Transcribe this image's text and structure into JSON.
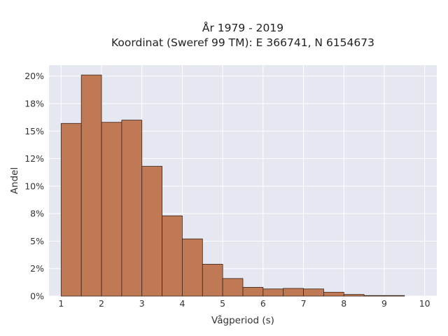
{
  "chart_data": {
    "type": "bar",
    "title_line1": "År 1979 - 2019",
    "title_line2": "Koordinat (Sweref 99 TM): E 366741, N 6154673",
    "xlabel": "Vågperiod (s)",
    "ylabel": "Andel",
    "bin_width": 0.5,
    "bins": [
      {
        "x0": 1.0,
        "value": 15.7
      },
      {
        "x0": 1.5,
        "value": 20.1
      },
      {
        "x0": 2.0,
        "value": 15.8
      },
      {
        "x0": 2.5,
        "value": 16.0
      },
      {
        "x0": 3.0,
        "value": 11.8
      },
      {
        "x0": 3.5,
        "value": 7.3
      },
      {
        "x0": 4.0,
        "value": 5.2
      },
      {
        "x0": 4.5,
        "value": 2.9
      },
      {
        "x0": 5.0,
        "value": 1.6
      },
      {
        "x0": 5.5,
        "value": 0.8
      },
      {
        "x0": 6.0,
        "value": 0.65
      },
      {
        "x0": 6.5,
        "value": 0.7
      },
      {
        "x0": 7.0,
        "value": 0.65
      },
      {
        "x0": 7.5,
        "value": 0.35
      },
      {
        "x0": 8.0,
        "value": 0.15
      },
      {
        "x0": 8.5,
        "value": 0.05
      },
      {
        "x0": 9.0,
        "value": 0.05
      }
    ],
    "xlim": [
      0.7,
      10.3
    ],
    "ylim": [
      0,
      21.0
    ],
    "x_ticks": [
      {
        "value": 1,
        "label": "1"
      },
      {
        "value": 2,
        "label": "2"
      },
      {
        "value": 3,
        "label": "3"
      },
      {
        "value": 4,
        "label": "4"
      },
      {
        "value": 5,
        "label": "5"
      },
      {
        "value": 6,
        "label": "6"
      },
      {
        "value": 7,
        "label": "7"
      },
      {
        "value": 8,
        "label": "8"
      },
      {
        "value": 9,
        "label": "9"
      },
      {
        "value": 10,
        "label": "10"
      }
    ],
    "y_ticks": [
      {
        "value": 0,
        "label": "0%"
      },
      {
        "value": 2.5,
        "label": "2%"
      },
      {
        "value": 5,
        "label": "5%"
      },
      {
        "value": 7.5,
        "label": "8%"
      },
      {
        "value": 10,
        "label": "10%"
      },
      {
        "value": 12.5,
        "label": "12%"
      },
      {
        "value": 15,
        "label": "15%"
      },
      {
        "value": 17.5,
        "label": "18%"
      },
      {
        "value": 20,
        "label": "20%"
      }
    ],
    "grid": true,
    "colors": {
      "bar_fill": "#bf7a55",
      "bar_edge": "#3a2416",
      "plot_bg": "#e5e7f1"
    }
  }
}
